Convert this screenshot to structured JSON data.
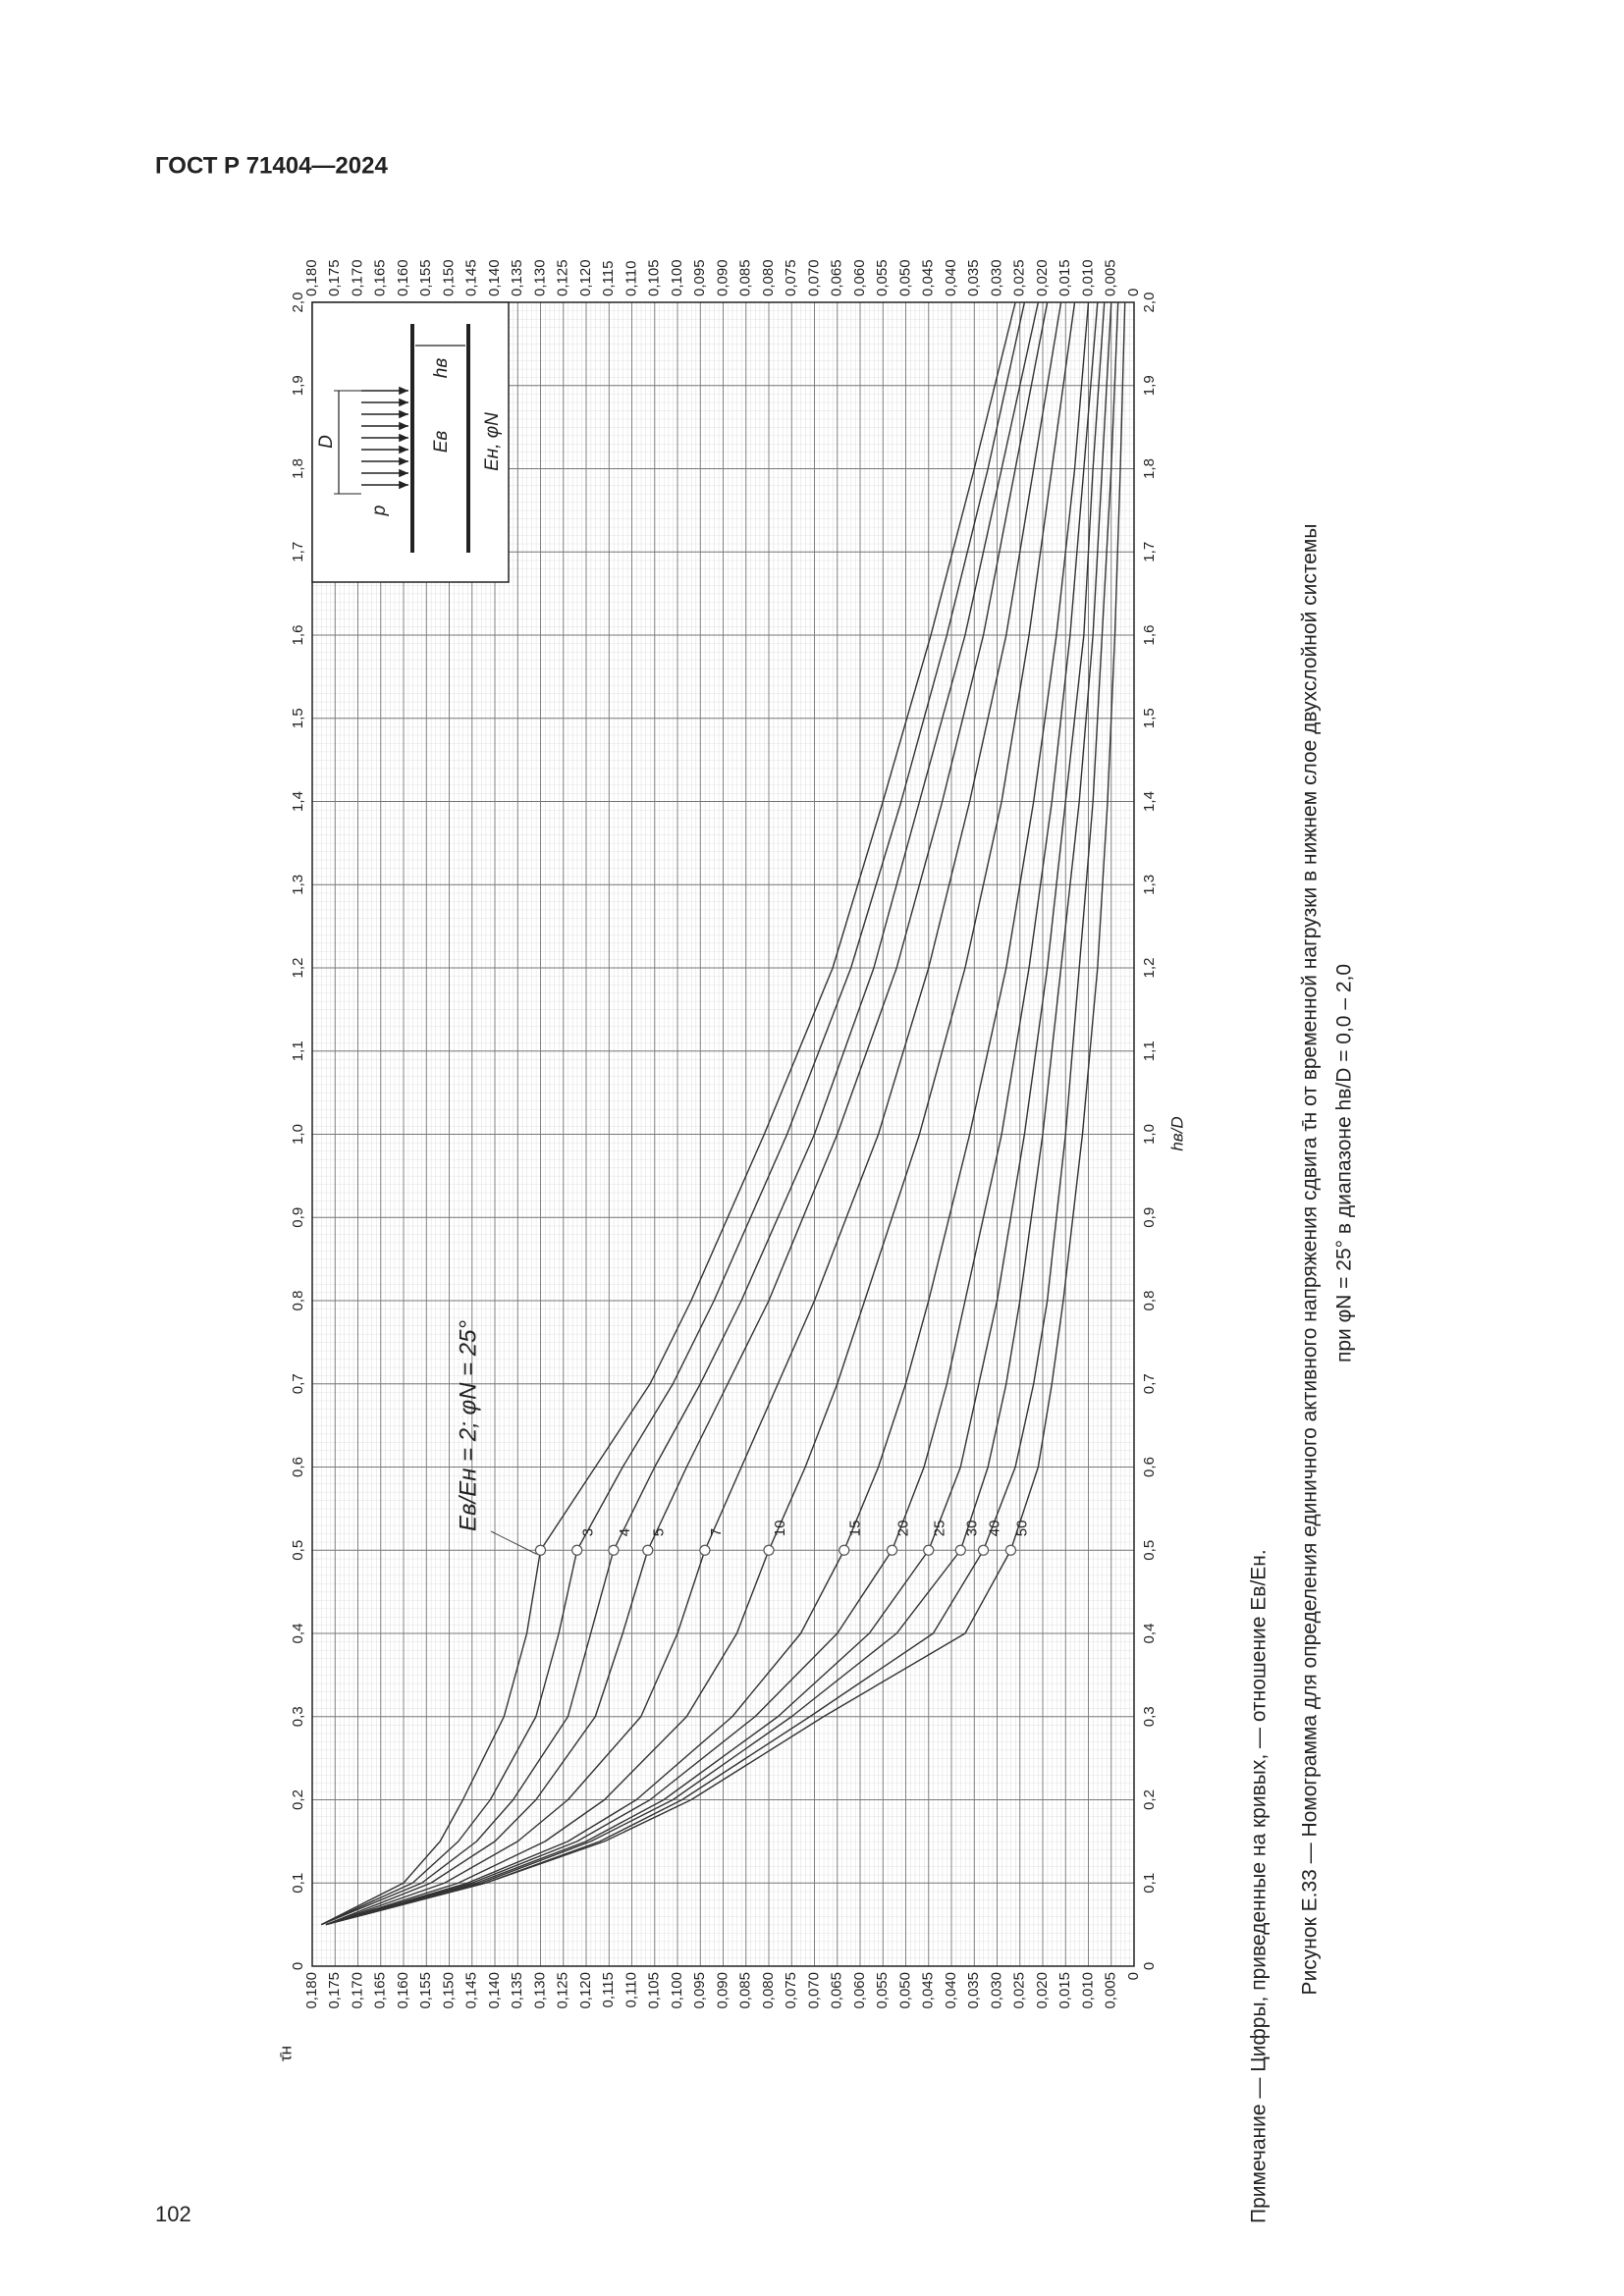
{
  "header": {
    "title": "ГОСТ Р 71404—2024"
  },
  "chart_data": {
    "type": "line",
    "xlabel": "hв/D",
    "ylabel": "τ̄н",
    "annotation": "Eв/Eн = 2; φN = 25°",
    "inset_labels": [
      "p",
      "D",
      "Eв",
      "Eн, φN",
      "hв"
    ],
    "x": [
      0.05,
      0.1,
      0.15,
      0.2,
      0.3,
      0.4,
      0.5,
      0.6,
      0.7,
      0.8,
      1.0,
      1.2,
      1.4,
      1.6,
      1.8,
      2.0
    ],
    "series": [
      {
        "name": "Eв/Eн = 2; φN = 25°",
        "color": "#333333",
        "values": [
          0.178,
          0.16,
          0.152,
          0.147,
          0.138,
          0.133,
          0.13,
          0.118,
          0.106,
          0.097,
          0.081,
          0.066,
          0.055,
          0.0445,
          0.035,
          0.026
        ]
      },
      {
        "name": "3",
        "color": "#333333",
        "values": [
          0.178,
          0.158,
          0.148,
          0.141,
          0.131,
          0.126,
          0.122,
          0.112,
          0.101,
          0.092,
          0.076,
          0.062,
          0.051,
          0.041,
          0.032,
          0.024
        ]
      },
      {
        "name": "4",
        "color": "#333333",
        "values": [
          0.178,
          0.156,
          0.144,
          0.136,
          0.124,
          0.119,
          0.114,
          0.105,
          0.095,
          0.086,
          0.07,
          0.057,
          0.047,
          0.037,
          0.029,
          0.021
        ]
      },
      {
        "name": "5",
        "color": "#333333",
        "values": [
          0.177,
          0.154,
          0.14,
          0.131,
          0.118,
          0.112,
          0.1065,
          0.098,
          0.089,
          0.08,
          0.065,
          0.052,
          0.042,
          0.033,
          0.026,
          0.019
        ]
      },
      {
        "name": "7",
        "color": "#333333",
        "values": [
          0.177,
          0.151,
          0.135,
          0.124,
          0.108,
          0.1,
          0.094,
          0.086,
          0.078,
          0.07,
          0.056,
          0.045,
          0.036,
          0.028,
          0.022,
          0.016
        ]
      },
      {
        "name": "10",
        "color": "#333333",
        "values": [
          0.177,
          0.148,
          0.129,
          0.116,
          0.098,
          0.087,
          0.08,
          0.072,
          0.065,
          0.059,
          0.047,
          0.037,
          0.029,
          0.023,
          0.018,
          0.013
        ]
      },
      {
        "name": "15",
        "color": "#333333",
        "values": [
          0.177,
          0.146,
          0.124,
          0.109,
          0.088,
          0.073,
          0.0635,
          0.056,
          0.05,
          0.045,
          0.036,
          0.028,
          0.022,
          0.017,
          0.013,
          0.01
        ]
      },
      {
        "name": "20",
        "color": "#333333",
        "values": [
          0.177,
          0.145,
          0.122,
          0.106,
          0.083,
          0.065,
          0.053,
          0.046,
          0.041,
          0.037,
          0.029,
          0.023,
          0.018,
          0.014,
          0.011,
          0.008
        ]
      },
      {
        "name": "25",
        "color": "#333333",
        "values": [
          0.177,
          0.144,
          0.12,
          0.103,
          0.078,
          0.058,
          0.045,
          0.038,
          0.034,
          0.03,
          0.024,
          0.019,
          0.015,
          0.011,
          0.009,
          0.0065
        ]
      },
      {
        "name": "30",
        "color": "#333333",
        "values": [
          0.177,
          0.143,
          0.119,
          0.101,
          0.075,
          0.052,
          0.038,
          0.032,
          0.028,
          0.025,
          0.02,
          0.016,
          0.012,
          0.009,
          0.007,
          0.005
        ]
      },
      {
        "name": "40",
        "color": "#333333",
        "values": [
          0.177,
          0.142,
          0.117,
          0.099,
          0.071,
          0.044,
          0.033,
          0.026,
          0.022,
          0.019,
          0.015,
          0.012,
          0.009,
          0.007,
          0.005,
          0.0035
        ]
      },
      {
        "name": "50",
        "color": "#333333",
        "values": [
          0.177,
          0.142,
          0.116,
          0.097,
          0.068,
          0.037,
          0.027,
          0.021,
          0.018,
          0.0155,
          0.0113,
          0.008,
          0.0058,
          0.0042,
          0.003,
          0.002
        ]
      }
    ],
    "xlim": [
      0,
      2.0
    ],
    "xticks": [
      0,
      {
        "value": 0.1,
        "label": "0,1"
      },
      {
        "value": 0.2,
        "label": "0,2"
      },
      {
        "value": 0.3,
        "label": "0,3"
      },
      {
        "value": 0.4,
        "label": "0,4"
      },
      {
        "value": 0.5,
        "label": "0,5"
      },
      {
        "value": 0.6,
        "label": "0,6"
      },
      {
        "value": 0.7,
        "label": "0,7"
      },
      {
        "value": 0.8,
        "label": "0,8"
      },
      {
        "value": 0.9,
        "label": "0,9"
      },
      {
        "value": 1.0,
        "label": "1,0"
      },
      {
        "value": 1.1,
        "label": "1,1"
      },
      {
        "value": 1.2,
        "label": "1,2"
      },
      {
        "value": 1.3,
        "label": "1,3"
      },
      {
        "value": 1.4,
        "label": "1,4"
      },
      {
        "value": 1.5,
        "label": "1,5"
      },
      {
        "value": 1.6,
        "label": "1,6"
      },
      {
        "value": 1.7,
        "label": "1,7"
      },
      {
        "value": 1.8,
        "label": "1,8"
      },
      {
        "value": 1.9,
        "label": "1,9"
      },
      {
        "value": 2.0,
        "label": "2,0"
      }
    ],
    "ylim": [
      0,
      0.18
    ],
    "yticks": [
      0,
      {
        "value": 0.005,
        "label": "0,005"
      },
      {
        "value": 0.01,
        "label": "0,010"
      },
      {
        "value": 0.015,
        "label": "0,015"
      },
      {
        "value": 0.02,
        "label": "0,020"
      },
      {
        "value": 0.025,
        "label": "0,025"
      },
      {
        "value": 0.03,
        "label": "0,030"
      },
      {
        "value": 0.035,
        "label": "0,035"
      },
      {
        "value": 0.04,
        "label": "0,040"
      },
      {
        "value": 0.045,
        "label": "0,045"
      },
      {
        "value": 0.05,
        "label": "0,050"
      },
      {
        "value": 0.055,
        "label": "0,055"
      },
      {
        "value": 0.06,
        "label": "0,060"
      },
      {
        "value": 0.065,
        "label": "0,065"
      },
      {
        "value": 0.07,
        "label": "0,070"
      },
      {
        "value": 0.075,
        "label": "0,075"
      },
      {
        "value": 0.08,
        "label": "0,080"
      },
      {
        "value": 0.085,
        "label": "0,085"
      },
      {
        "value": 0.09,
        "label": "0,090"
      },
      {
        "value": 0.095,
        "label": "0,095"
      },
      {
        "value": 0.1,
        "label": "0,100"
      },
      {
        "value": 0.105,
        "label": "0,105"
      },
      {
        "value": 0.11,
        "label": "0,110"
      },
      {
        "value": 0.115,
        "label": "0,115"
      },
      {
        "value": 0.12,
        "label": "0,120"
      },
      {
        "value": 0.125,
        "label": "0,125"
      },
      {
        "value": 0.13,
        "label": "0,130"
      },
      {
        "value": 0.135,
        "label": "0,135"
      },
      {
        "value": 0.14,
        "label": "0,140"
      },
      {
        "value": 0.145,
        "label": "0,145"
      },
      {
        "value": 0.15,
        "label": "0,150"
      },
      {
        "value": 0.155,
        "label": "0,155"
      },
      {
        "value": 0.16,
        "label": "0,160"
      },
      {
        "value": 0.165,
        "label": "0,165"
      },
      {
        "value": 0.17,
        "label": "0,170"
      },
      {
        "value": 0.175,
        "label": "0,175"
      },
      {
        "value": 0.18,
        "label": "0,180"
      }
    ],
    "grid": true
  },
  "note": "Примечание — Цифры, приведенные на кривых, — отношение Eв/Eн.",
  "caption": [
    "Рисунок Е.33 — Номограмма для определения единичного активного напряжения сдвига τ̄н от временной нагрузки в нижнем слое двухслойной системы",
    "при φN = 25° в диапазоне hв/D = 0,0 – 2,0"
  ],
  "page_number": "102"
}
